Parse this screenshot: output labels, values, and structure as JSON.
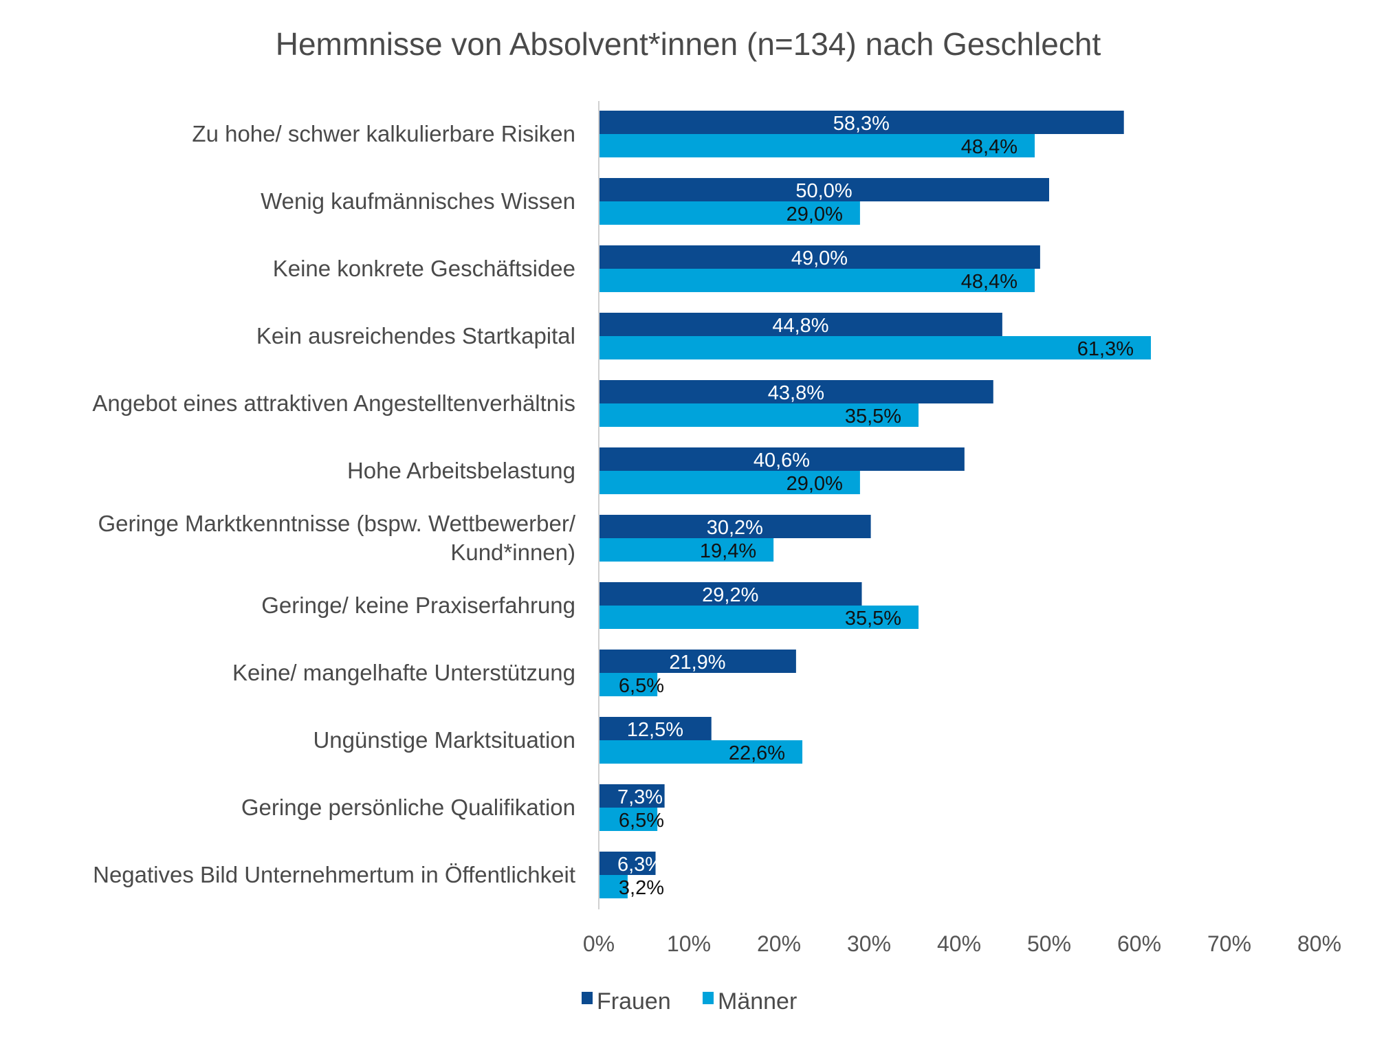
{
  "chart_data": {
    "type": "bar",
    "orientation": "horizontal",
    "title": "Hemmnisse von Absolvent*innen (n=134) nach Geschlecht",
    "categories": [
      [
        "Zu hohe/ schwer kalkulierbare Risiken"
      ],
      [
        "Wenig kaufmännisches Wissen"
      ],
      [
        "Keine konkrete Geschäftsidee"
      ],
      [
        "Kein ausreichendes Startkapital"
      ],
      [
        "Angebot eines attraktiven Angestelltenverhältnis"
      ],
      [
        "Hohe Arbeitsbelastung"
      ],
      [
        "Geringe Marktkenntnisse (bspw. Wettbewerber/",
        "Kund*innen)"
      ],
      [
        "Geringe/ keine Praxiserfahrung"
      ],
      [
        "Keine/ mangelhafte Unterstützung"
      ],
      [
        "Ungünstige Marktsituation"
      ],
      [
        "Geringe persönliche Qualifikation"
      ],
      [
        "Negatives Bild Unternehmertum in Öffentlichkeit"
      ]
    ],
    "series": [
      {
        "name": "Frauen",
        "color": "#0b4a8f",
        "label_color": "#ffffff",
        "values": [
          58.3,
          50.0,
          49.0,
          44.8,
          43.8,
          40.6,
          30.2,
          29.2,
          21.9,
          12.5,
          7.3,
          6.3
        ],
        "labels": [
          "58,3%",
          "50,0%",
          "49,0%",
          "44,8%",
          "43,8%",
          "40,6%",
          "30,2%",
          "29,2%",
          "21,9%",
          "12,5%",
          "7,3%",
          "6,3%"
        ]
      },
      {
        "name": "Männer",
        "color": "#00a3db",
        "label_color": "#111111",
        "values": [
          48.4,
          29.0,
          48.4,
          61.3,
          35.5,
          29.0,
          19.4,
          35.5,
          6.5,
          22.6,
          6.5,
          3.2
        ],
        "labels": [
          "48,4%",
          "29,0%",
          "48,4%",
          "61,3%",
          "35,5%",
          "29,0%",
          "19,4%",
          "35,5%",
          "6,5%",
          "22,6%",
          "6,5%",
          "3,2%"
        ]
      }
    ],
    "xlim": [
      0,
      80
    ],
    "xticks": [
      "0%",
      "10%",
      "20%",
      "30%",
      "40%",
      "50%",
      "60%",
      "70%",
      "80%"
    ],
    "xlabel": "",
    "ylabel": "",
    "grid": false,
    "legend": "bottom"
  }
}
